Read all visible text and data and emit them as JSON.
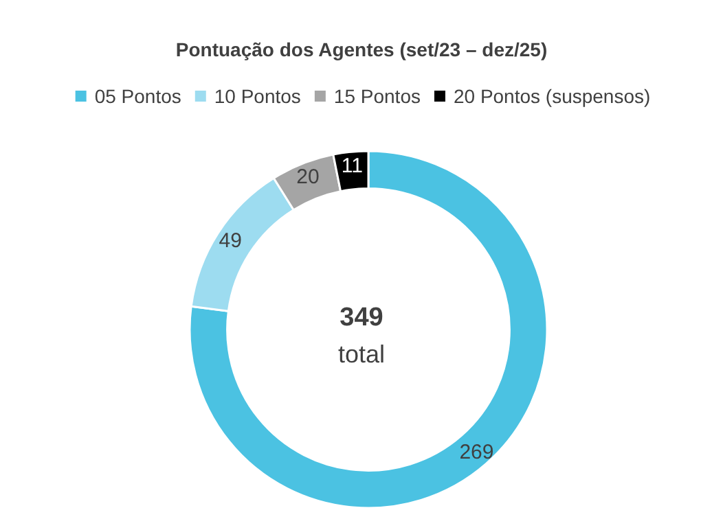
{
  "chart_data": {
    "type": "donut",
    "title": "Pontuação dos Agentes (set/23 – dez/25)",
    "categories": [
      "05 Pontos",
      "10 Pontos",
      "15 Pontos",
      "20 Pontos (suspensos)"
    ],
    "values": [
      269,
      49,
      20,
      11
    ],
    "colors": [
      "#4bc2e2",
      "#9ddcf0",
      "#a5a5a5",
      "#000000"
    ],
    "data_labels": true,
    "legend": "top",
    "annotations": [
      "349",
      "total"
    ]
  }
}
